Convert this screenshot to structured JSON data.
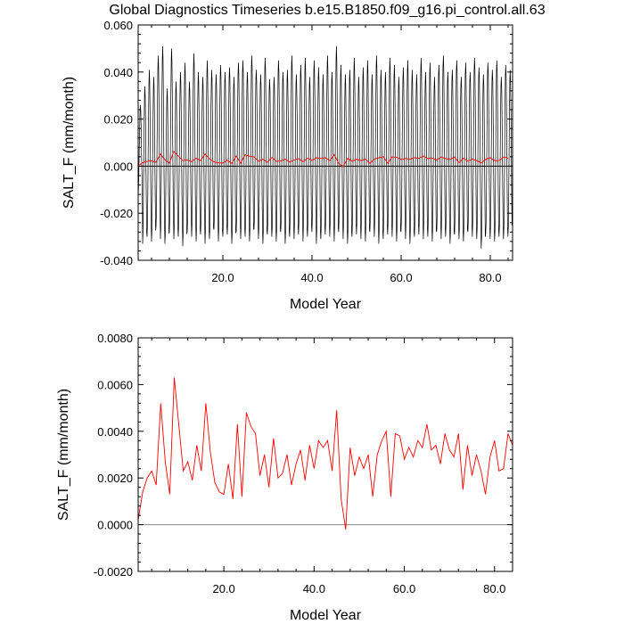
{
  "title": "Global Diagnostics Timeseries b.e15.B1850.f09_g16.pi_control.all.63",
  "chart_data": [
    {
      "type": "line",
      "xlabel": "Model Year",
      "ylabel": "SALT_F (mm/month)",
      "xlim": [
        1,
        85
      ],
      "ylim": [
        -0.04,
        0.06
      ],
      "x_ticks": [
        20,
        40,
        60,
        80
      ],
      "x_tick_labels": [
        "20.0",
        "40.0",
        "60.0",
        "80.0"
      ],
      "y_ticks": [
        -0.04,
        -0.02,
        0.0,
        0.02,
        0.04,
        0.06
      ],
      "y_tick_labels": [
        "-0.040",
        "-0.020",
        "0.000",
        "0.020",
        "0.040",
        "0.060"
      ],
      "zero_line": true,
      "series": [
        {
          "name": "monthly",
          "color": "#000000",
          "x_start": 1,
          "x_step": 0.0833,
          "annual_max": [
            0.026,
            0.034,
            0.041,
            0.038,
            0.047,
            0.051,
            0.033,
            0.05,
            0.036,
            0.04,
            0.044,
            0.036,
            0.048,
            0.04,
            0.038,
            0.045,
            0.041,
            0.039,
            0.043,
            0.04,
            0.042,
            0.038,
            0.044,
            0.045,
            0.04,
            0.047,
            0.041,
            0.039,
            0.046,
            0.037,
            0.038,
            0.045,
            0.04,
            0.041,
            0.047,
            0.039,
            0.043,
            0.046,
            0.038,
            0.045,
            0.042,
            0.039,
            0.047,
            0.04,
            0.051,
            0.043,
            0.039,
            0.041,
            0.046,
            0.038,
            0.042,
            0.045,
            0.039,
            0.047,
            0.041,
            0.04,
            0.046,
            0.043,
            0.038,
            0.042,
            0.045,
            0.041,
            0.039,
            0.046,
            0.04,
            0.044,
            0.038,
            0.043,
            0.047,
            0.04,
            0.041,
            0.045,
            0.038,
            0.044,
            0.04,
            0.046,
            0.042,
            0.039,
            0.044,
            0.041,
            0.045,
            0.038,
            0.043,
            0.041
          ],
          "annual_min": [
            -0.012,
            -0.033,
            -0.03,
            -0.032,
            -0.026,
            -0.031,
            -0.033,
            -0.028,
            -0.031,
            -0.03,
            -0.034,
            -0.028,
            -0.03,
            -0.032,
            -0.029,
            -0.033,
            -0.031,
            -0.027,
            -0.032,
            -0.03,
            -0.029,
            -0.033,
            -0.028,
            -0.031,
            -0.03,
            -0.032,
            -0.027,
            -0.031,
            -0.033,
            -0.029,
            -0.03,
            -0.032,
            -0.028,
            -0.033,
            -0.03,
            -0.031,
            -0.029,
            -0.032,
            -0.03,
            -0.028,
            -0.033,
            -0.031,
            -0.029,
            -0.03,
            -0.032,
            -0.028,
            -0.031,
            -0.033,
            -0.03,
            -0.029,
            -0.031,
            -0.032,
            -0.028,
            -0.03,
            -0.033,
            -0.031,
            -0.029,
            -0.03,
            -0.032,
            -0.028,
            -0.031,
            -0.033,
            -0.03,
            -0.029,
            -0.031,
            -0.03,
            -0.032,
            -0.028,
            -0.031,
            -0.03,
            -0.033,
            -0.029,
            -0.031,
            -0.032,
            -0.028,
            -0.03,
            -0.031,
            -0.035,
            -0.029,
            -0.031,
            -0.032,
            -0.03,
            -0.031,
            -0.03
          ]
        },
        {
          "name": "annual mean",
          "color": "#ff0000",
          "x_start": 1,
          "x_step": 1,
          "values": [
            0.0002,
            0.0014,
            0.002,
            0.0023,
            0.0017,
            0.0052,
            0.0027,
            0.0013,
            0.0063,
            0.0043,
            0.0023,
            0.0027,
            0.0019,
            0.0034,
            0.0023,
            0.0052,
            0.0031,
            0.0018,
            0.0014,
            0.0013,
            0.0026,
            0.0011,
            0.0043,
            0.0012,
            0.0048,
            0.0042,
            0.0039,
            0.0021,
            0.003,
            0.0016,
            0.0037,
            0.002,
            0.0022,
            0.003,
            0.0017,
            0.0026,
            0.0032,
            0.0019,
            0.0034,
            0.0024,
            0.0036,
            0.0033,
            0.0036,
            0.0023,
            0.0049,
            0.0011,
            -0.0002,
            0.0033,
            0.0021,
            0.0029,
            0.0024,
            0.003,
            0.0012,
            0.003,
            0.0036,
            0.004,
            0.0012,
            0.0039,
            0.0038,
            0.0028,
            0.0033,
            0.0029,
            0.0036,
            0.0033,
            0.0043,
            0.0032,
            0.0034,
            0.0026,
            0.0039,
            0.0032,
            0.0029,
            0.0039,
            0.0015,
            0.0034,
            0.0021,
            0.003,
            0.0023,
            0.0013,
            0.0029,
            0.0036,
            0.0023,
            0.0024,
            0.0039,
            0.0034
          ]
        }
      ]
    },
    {
      "type": "line",
      "xlabel": "Model Year",
      "ylabel": "SALT_F (mm/month)",
      "xlim": [
        1,
        84
      ],
      "ylim": [
        -0.002,
        0.008
      ],
      "x_ticks": [
        20,
        40,
        60,
        80
      ],
      "x_tick_labels": [
        "20.0",
        "40.0",
        "60.0",
        "80.0"
      ],
      "y_ticks": [
        -0.002,
        0.0,
        0.002,
        0.004,
        0.006,
        0.008
      ],
      "y_tick_labels": [
        "-0.0020",
        "0.0000",
        "0.0020",
        "0.0040",
        "0.0060",
        "0.0080"
      ],
      "zero_line": true,
      "series": [
        {
          "name": "annual mean",
          "color": "#ff0000",
          "x_start": 1,
          "x_step": 1,
          "values": [
            0.0002,
            0.0014,
            0.002,
            0.0023,
            0.0017,
            0.0052,
            0.0027,
            0.0013,
            0.0063,
            0.0043,
            0.0023,
            0.0027,
            0.0019,
            0.0034,
            0.0023,
            0.0052,
            0.0031,
            0.0018,
            0.0014,
            0.0013,
            0.0026,
            0.0011,
            0.0043,
            0.0012,
            0.0048,
            0.0042,
            0.0039,
            0.0021,
            0.003,
            0.0016,
            0.0037,
            0.002,
            0.0022,
            0.003,
            0.0017,
            0.0026,
            0.0032,
            0.0019,
            0.0034,
            0.0024,
            0.0036,
            0.0033,
            0.0036,
            0.0023,
            0.0049,
            0.0011,
            -0.0002,
            0.0033,
            0.0021,
            0.0029,
            0.0024,
            0.003,
            0.0012,
            0.003,
            0.0036,
            0.004,
            0.0012,
            0.0039,
            0.0038,
            0.0028,
            0.0033,
            0.0029,
            0.0036,
            0.0033,
            0.0043,
            0.0032,
            0.0034,
            0.0026,
            0.0039,
            0.0032,
            0.0029,
            0.0039,
            0.0015,
            0.0034,
            0.0021,
            0.003,
            0.0023,
            0.0013,
            0.0029,
            0.0036,
            0.0023,
            0.0024,
            0.0039,
            0.0034
          ]
        }
      ]
    }
  ]
}
